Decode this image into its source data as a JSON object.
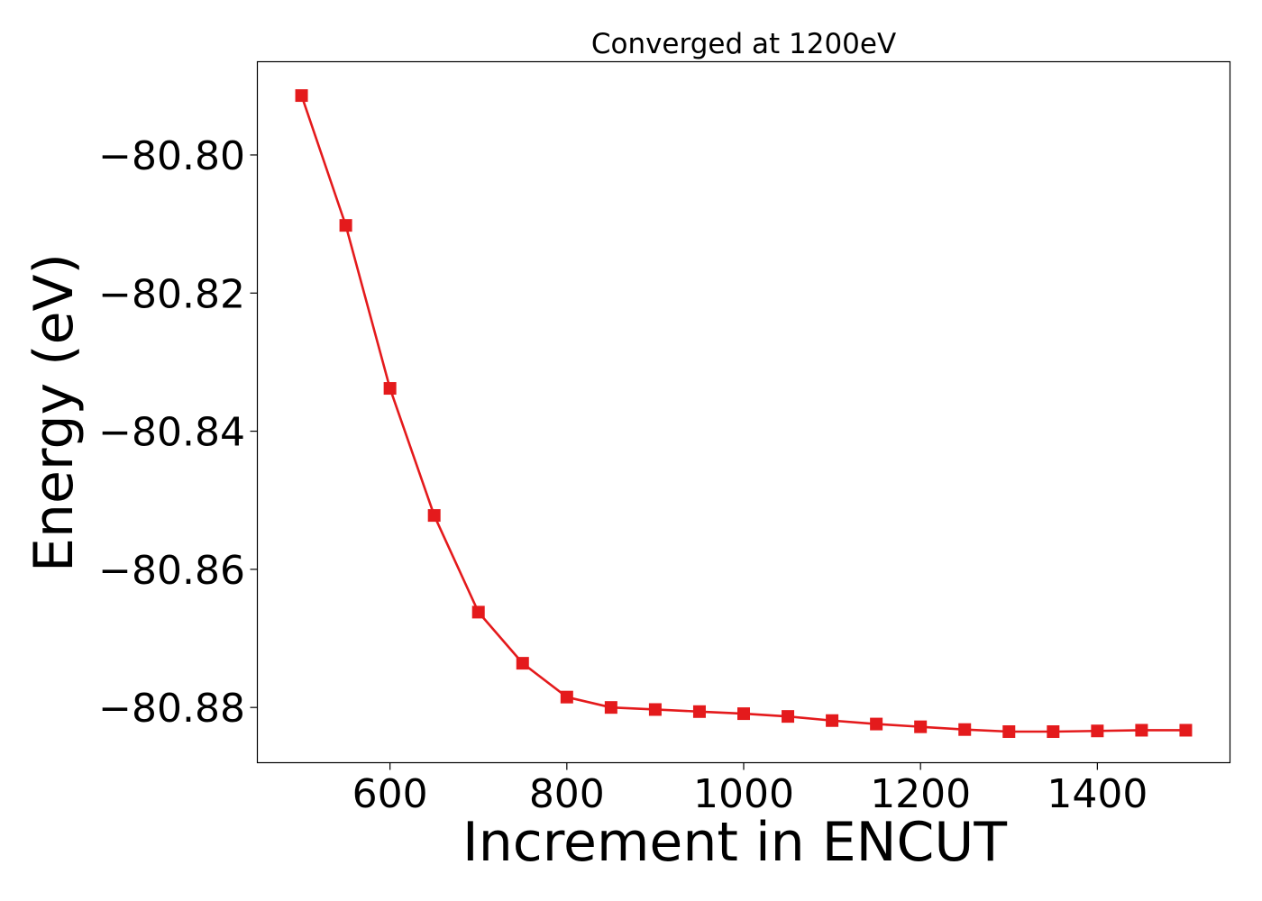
{
  "chart_data": {
    "type": "line",
    "title": "Converged at 1200eV",
    "xlabel": "Increment in ENCUT",
    "ylabel": "Energy (eV)",
    "xlim": [
      450,
      1550
    ],
    "ylim": [
      -80.888,
      -80.7865
    ],
    "xticks": [
      600,
      800,
      1000,
      1200,
      1400
    ],
    "xtick_labels": [
      "600",
      "800",
      "1000",
      "1200",
      "1400"
    ],
    "yticks": [
      -80.8,
      -80.82,
      -80.84,
      -80.86,
      -80.88
    ],
    "ytick_labels": [
      "−80.80",
      "−80.82",
      "−80.84",
      "−80.86",
      "−80.88"
    ],
    "grid": false,
    "series": [
      {
        "color": "#e41a1c",
        "marker": "square",
        "x": [
          500,
          550,
          600,
          650,
          700,
          750,
          800,
          850,
          900,
          950,
          1000,
          1050,
          1100,
          1150,
          1200,
          1250,
          1300,
          1350,
          1400,
          1450,
          1500
        ],
        "y": [
          -80.7914,
          -80.8102,
          -80.8338,
          -80.8522,
          -80.8662,
          -80.8736,
          -80.8785,
          -80.88,
          -80.8803,
          -80.8806,
          -80.8809,
          -80.8813,
          -80.8819,
          -80.8824,
          -80.8828,
          -80.8832,
          -80.8835,
          -80.8835,
          -80.8834,
          -80.8833,
          -80.8833
        ]
      }
    ]
  }
}
